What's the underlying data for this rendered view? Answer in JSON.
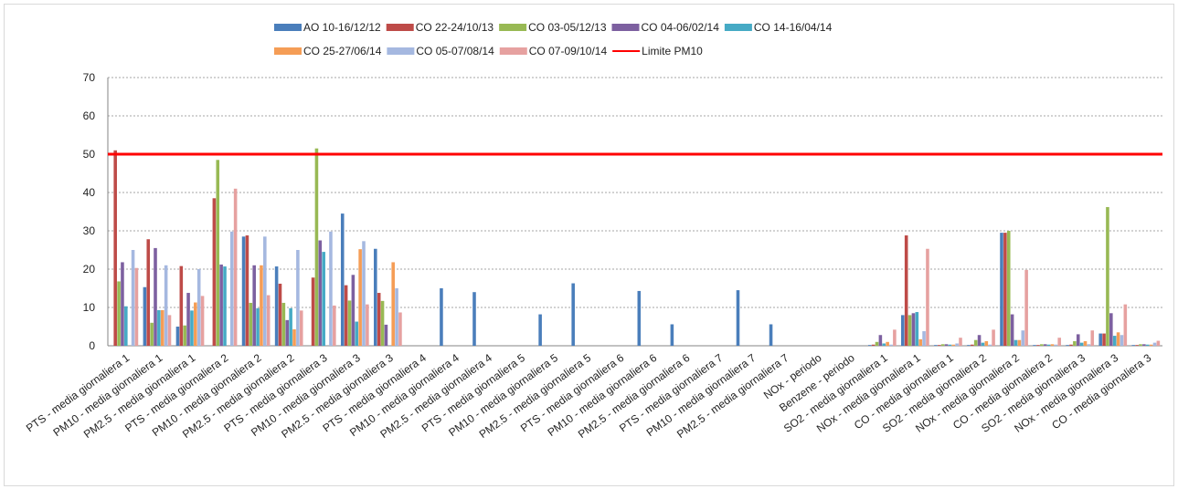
{
  "chart_data": {
    "type": "bar",
    "title": "",
    "xlabel": "",
    "ylabel": "",
    "ylim": [
      0,
      70
    ],
    "yticks": [
      0,
      10,
      20,
      30,
      40,
      50,
      60,
      70
    ],
    "grid": "horizontal dashed",
    "legend_position": "top",
    "categories": [
      "PTS - media giornaliera 1",
      "PM10 - media giornaliera 1",
      "PM2.5 - media giornaliera 1",
      "PTS - media giornaliera 2",
      "PM10 - media giornaliera 2",
      "PM2.5 - media giornaliera 2",
      "PTS - media giornaliera 3",
      "PM10 - media giornaliera 3",
      "PM2.5 - media giornaliera 3",
      "PTS - media giornaliera 4",
      "PM10 - media giornaliera 4",
      "PM2.5 - media giornaliera 4",
      "PTS - media giornaliera 5",
      "PM10 - media giornaliera 5",
      "PM2.5 - media giornaliera 5",
      "PTS - media giornaliera 6",
      "PM10 - media giornaliera 6",
      "PM2.5 - media giornaliera 6",
      "PTS - media giornaliera 7",
      "PM10 - media giornaliera 7",
      "PM2.5 - media giornaliera 7",
      "NOx - periodo",
      "Benzene - periodo",
      "SO2 - media giornaliera 1",
      "NOx - media giornaliera 1",
      "CO - media giornaliera 1",
      "SO2 - media giornaliera 2",
      "NOx - media giornaliera 2",
      "CO - media giornaliera 2",
      "SO2 - media giornaliera 3",
      "NOx - media giornaliera 3",
      "CO - media giornaliera 3"
    ],
    "series": [
      {
        "name": "AO 10-16/12/12",
        "color": "#4a7ebb",
        "values": [
          null,
          15.3,
          5.0,
          null,
          28.5,
          20.7,
          null,
          34.5,
          25.3,
          null,
          15.0,
          14.0,
          null,
          8.2,
          16.3,
          null,
          14.3,
          5.6,
          null,
          14.5,
          5.6,
          null,
          null,
          0.2,
          8.0,
          0.2,
          0.2,
          29.5,
          0.2,
          0.2,
          3.2,
          0.2
        ]
      },
      {
        "name": "CO 22-24/10/13",
        "color": "#be4b48",
        "values": [
          51.0,
          27.8,
          20.8,
          38.5,
          28.8,
          16.2,
          17.8,
          15.8,
          13.8,
          null,
          null,
          null,
          null,
          null,
          null,
          null,
          null,
          null,
          null,
          null,
          null,
          null,
          null,
          0.3,
          28.8,
          0.2,
          0.3,
          29.5,
          0.2,
          0.3,
          3.2,
          0.2
        ]
      },
      {
        "name": "CO 03-05/12/13",
        "color": "#98b954",
        "values": [
          16.8,
          6.0,
          5.3,
          48.5,
          11.2,
          11.2,
          51.5,
          11.8,
          11.7,
          null,
          null,
          null,
          null,
          null,
          null,
          null,
          null,
          null,
          null,
          null,
          null,
          null,
          null,
          1.0,
          8.0,
          0.4,
          1.5,
          30.0,
          0.4,
          1.2,
          36.2,
          0.4
        ]
      },
      {
        "name": "CO 04-06/02/14",
        "color": "#7d60a0",
        "values": [
          21.8,
          25.5,
          13.8,
          21.2,
          21.0,
          6.7,
          27.5,
          18.5,
          5.5,
          null,
          null,
          null,
          null,
          null,
          null,
          null,
          null,
          null,
          null,
          null,
          null,
          null,
          null,
          2.8,
          8.5,
          0.4,
          2.8,
          8.2,
          0.4,
          3.0,
          8.5,
          0.4
        ]
      },
      {
        "name": "CO 14-16/04/14",
        "color": "#46aac5",
        "values": [
          10.3,
          9.3,
          9.2,
          20.7,
          9.8,
          9.8,
          24.5,
          6.3,
          null,
          null,
          null,
          null,
          null,
          null,
          null,
          null,
          null,
          null,
          null,
          null,
          null,
          null,
          null,
          0.6,
          8.8,
          0.3,
          0.8,
          1.5,
          0.3,
          0.8,
          2.6,
          0.3
        ]
      },
      {
        "name": "CO 25-27/06/14",
        "color": "#f59d56",
        "values": [
          null,
          9.3,
          11.3,
          null,
          21.0,
          4.3,
          null,
          25.2,
          21.8,
          null,
          null,
          null,
          null,
          null,
          null,
          null,
          null,
          null,
          null,
          null,
          null,
          null,
          null,
          1.0,
          1.7,
          0.3,
          1.2,
          1.5,
          0.4,
          1.2,
          3.5,
          0.3
        ]
      },
      {
        "name": "CO 05-07/08/14",
        "color": "#a5b8e0",
        "values": [
          25.0,
          21.0,
          20.0,
          29.8,
          28.5,
          25.0,
          29.8,
          27.3,
          15.0,
          null,
          null,
          null,
          null,
          null,
          null,
          null,
          null,
          null,
          null,
          null,
          null,
          null,
          null,
          0.3,
          3.8,
          0.6,
          0.3,
          4.0,
          0.3,
          0.4,
          2.8,
          0.8
        ]
      },
      {
        "name": "CO 07-09/10/14",
        "color": "#e6a1a0",
        "values": [
          20.3,
          8.0,
          13.0,
          41.0,
          13.2,
          9.2,
          10.5,
          10.8,
          8.7,
          null,
          null,
          null,
          null,
          null,
          null,
          null,
          null,
          null,
          null,
          null,
          null,
          null,
          null,
          4.2,
          25.3,
          2.1,
          4.2,
          19.8,
          2.1,
          4.0,
          10.8,
          1.3
        ]
      }
    ],
    "reference_lines": [
      {
        "name": "Limite PM10",
        "value": 50,
        "color": "#ff0000"
      }
    ]
  }
}
